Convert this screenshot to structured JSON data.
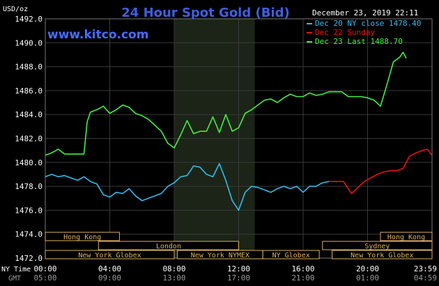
{
  "chart_data": {
    "type": "line",
    "title": "24 Hour Spot Gold (Bid)",
    "site": "www.kitco.com",
    "date_stamp": "December 23, 2019 22:11",
    "y_unit_label": "USD/oz",
    "ylim": [
      1472.0,
      1492.0
    ],
    "y_ticks": [
      "1472.0",
      "1474.0",
      "1476.0",
      "1478.0",
      "1480.0",
      "1482.0",
      "1484.0",
      "1486.0",
      "1488.0",
      "1490.0",
      "1492.0"
    ],
    "xlim": [
      0,
      24
    ],
    "x_ticks_ny": [
      "00:00",
      "04:00",
      "08:00",
      "12:00",
      "16:00",
      "20:00",
      "23:59"
    ],
    "x_ticks_gmt": [
      "05:00",
      "09:00",
      "13:00",
      "17:00",
      "21:00",
      "01:00",
      "04:59"
    ],
    "x_label_ny": "NY Time",
    "x_label_gmt": "GMT",
    "grid": true,
    "legend_position": "top-right",
    "colors": {
      "background": "#000000",
      "grid": "#3a3a3a",
      "axis_text": "#ffffff",
      "title": "#3f5fe0",
      "site": "#4a6cff",
      "shade": "#1b2417",
      "sessions_border": "#e0b060",
      "sessions_text": "#e0b060"
    },
    "series": [
      {
        "name": "Dec 20 NY close 1478.40",
        "color": "#33bbee",
        "x": [
          0,
          0.4,
          0.8,
          1.2,
          1.6,
          2,
          2.4,
          2.8,
          3.2,
          3.6,
          4,
          4.4,
          4.8,
          5.2,
          5.6,
          6,
          6.4,
          6.8,
          7.2,
          7.6,
          8,
          8.4,
          8.8,
          9.2,
          9.6,
          10,
          10.4,
          10.8,
          11.2,
          11.6,
          12,
          12.4,
          12.8,
          13.2,
          13.6,
          14,
          14.4,
          14.8,
          15.2,
          15.6,
          16,
          16.4,
          16.8,
          17.2,
          17.6
        ],
        "y": [
          1478.8,
          1479.0,
          1478.8,
          1478.9,
          1478.7,
          1478.5,
          1478.8,
          1478.4,
          1478.2,
          1477.3,
          1477.1,
          1477.5,
          1477.4,
          1477.8,
          1477.2,
          1476.8,
          1477.0,
          1477.2,
          1477.4,
          1478.0,
          1478.3,
          1478.8,
          1478.9,
          1479.7,
          1479.6,
          1479.0,
          1478.8,
          1479.9,
          1478.5,
          1476.8,
          1476.0,
          1477.5,
          1478.0,
          1477.9,
          1477.7,
          1477.5,
          1477.8,
          1478.0,
          1477.8,
          1478.0,
          1477.5,
          1478.0,
          1478.0,
          1478.3,
          1478.4
        ]
      },
      {
        "name": "Dec 22 Sunday",
        "color": "#ee1111",
        "x": [
          17.6,
          18.0,
          18.5,
          19.0,
          19.4,
          19.8,
          20.2,
          20.6,
          21.0,
          21.4,
          21.8,
          22.2,
          22.6,
          23.0,
          23.4,
          23.7,
          23.99
        ],
        "y": [
          1478.4,
          1478.4,
          1478.4,
          1477.4,
          1477.9,
          1478.4,
          1478.7,
          1479.0,
          1479.2,
          1479.3,
          1479.3,
          1479.5,
          1480.5,
          1480.8,
          1481.0,
          1481.1,
          1480.6
        ]
      },
      {
        "name": "Dec 23 Last 1488.70",
        "color": "#44ee44",
        "x": [
          0,
          0.4,
          0.8,
          1.2,
          1.6,
          2,
          2.4,
          2.6,
          2.8,
          3.2,
          3.6,
          4,
          4.4,
          4.8,
          5.2,
          5.6,
          6,
          6.4,
          6.8,
          7.2,
          7.6,
          8,
          8.4,
          8.8,
          9.2,
          9.6,
          10,
          10.4,
          10.8,
          11.2,
          11.6,
          12,
          12.4,
          12.8,
          13.2,
          13.6,
          14,
          14.4,
          14.8,
          15.2,
          15.6,
          16,
          16.4,
          16.8,
          17.2,
          17.6,
          18,
          18.4,
          18.8,
          19.2,
          19.6,
          20,
          20.4,
          20.8,
          21.2,
          21.6,
          22,
          22.2,
          22.4
        ],
        "y": [
          1480.6,
          1480.8,
          1481.1,
          1480.7,
          1480.7,
          1480.7,
          1480.7,
          1483.4,
          1484.2,
          1484.4,
          1484.7,
          1484.1,
          1484.4,
          1484.8,
          1484.6,
          1484.1,
          1483.9,
          1483.6,
          1483.1,
          1482.6,
          1481.6,
          1481.2,
          1482.3,
          1483.5,
          1482.4,
          1482.6,
          1482.6,
          1483.8,
          1482.5,
          1484.0,
          1482.6,
          1482.9,
          1484.1,
          1484.4,
          1484.8,
          1485.2,
          1485.3,
          1485.0,
          1485.4,
          1485.7,
          1485.5,
          1485.5,
          1485.8,
          1485.6,
          1485.7,
          1485.9,
          1485.9,
          1485.9,
          1485.5,
          1485.5,
          1485.5,
          1485.4,
          1485.2,
          1484.7,
          1486.5,
          1488.4,
          1488.8,
          1489.2,
          1488.7
        ]
      }
    ],
    "shaded_region_hours": [
      8.0,
      13.0
    ],
    "sessions": [
      {
        "name": "Hong Kong",
        "start": 0,
        "end": 4.6,
        "row": 0
      },
      {
        "name": "London",
        "start": 3.3,
        "end": 12.0,
        "row": 1
      },
      {
        "name": "New York Globex",
        "start": 0,
        "end": 8.0,
        "row": 2
      },
      {
        "name": "New York NYMEX",
        "start": 8.2,
        "end": 13.5,
        "row": 2
      },
      {
        "name": "NY Globex",
        "start": 13.5,
        "end": 17.0,
        "row": 2
      },
      {
        "name": "Hong Kong",
        "start": 20.8,
        "end": 24.0,
        "row": 0
      },
      {
        "name": "Sydney",
        "start": 17.2,
        "end": 24.0,
        "row": 1
      },
      {
        "name": "New York Globex",
        "start": 17.8,
        "end": 24.0,
        "row": 2
      }
    ]
  }
}
